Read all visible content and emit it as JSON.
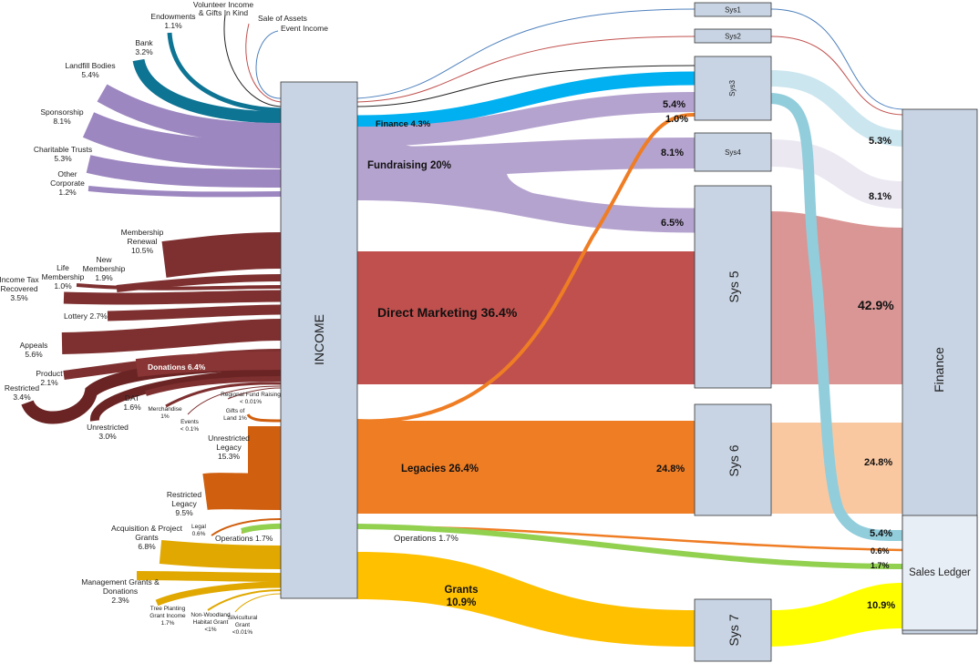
{
  "nodes": {
    "income": "INCOME",
    "sys1": "Sys1",
    "sys2": "Sys2",
    "sys3": "Sys3",
    "sys4": "Sys4",
    "sys5": "Sys 5",
    "sys6": "Sys 6",
    "sys7": "Sys 7",
    "finance": "Finance",
    "sales_ledger": "Sales Ledger"
  },
  "sources": {
    "endowments": [
      "Endowments",
      "1.1%"
    ],
    "volunteer": [
      "Volunteer Income",
      "& Gifts In Kind"
    ],
    "sale_assets": "Sale of Assets",
    "event_income": "Event Income",
    "bank": [
      "Bank",
      "3.2%"
    ],
    "landfill": [
      "Landfill Bodies",
      "5.4%"
    ],
    "sponsorship": [
      "Sponsorship",
      "8.1%"
    ],
    "charitable": [
      "Charitable Trusts",
      "5.3%"
    ],
    "other_corp": [
      "Other",
      "Corporate",
      "1.2%"
    ],
    "membership_renewal": [
      "Membership",
      "Renewal",
      "10.5%"
    ],
    "new_membership": [
      "New",
      "Membership",
      "1.9%"
    ],
    "life_membership": [
      "Life",
      "Membership",
      "1.0%"
    ],
    "income_tax": [
      "Income Tax",
      "Recovered",
      "3.5%"
    ],
    "lottery": "Lottery 2.7%",
    "appeals": [
      "Appeals",
      "5.6%"
    ],
    "product": [
      "Product",
      "2.1%"
    ],
    "restricted": [
      "Restricted",
      "3.4%"
    ],
    "unrestricted": [
      "Unrestricted",
      "3.0%"
    ],
    "dat": [
      "DAT",
      "1.6%"
    ],
    "merchandise": [
      "Merchandise",
      "1%"
    ],
    "events": [
      "Events",
      "< 0.1%"
    ],
    "regional": [
      "Regional Fund Raising",
      "< 0.01%"
    ],
    "gifts_land": [
      "Gifts of",
      "Land 1%"
    ],
    "unrestricted_legacy": [
      "Unrestricted",
      "Legacy",
      "15.3%"
    ],
    "restricted_legacy": [
      "Restricted",
      "Legacy",
      "9.5%"
    ],
    "legal": [
      "Legal",
      "0.6%"
    ],
    "acquisition": [
      "Acquisition & Project",
      "Grants",
      "6.8%"
    ],
    "operations_src": "Operations 1.7%",
    "management": [
      "Management Grants &",
      "Donations",
      "2.3%"
    ],
    "tree_planting": [
      "Tree Planting",
      "Grant Income",
      "1.7%"
    ],
    "non_woodland": [
      "Non-Woodland",
      "Habitat Grant",
      "<1%"
    ],
    "silvicultural": [
      "Silvicultural",
      "Grant",
      "<0.01%"
    ],
    "donations": "Donations 6.4%"
  },
  "flows": {
    "finance": "Finance 4.3%",
    "fundraising": "Fundraising 20%",
    "direct_marketing": "Direct Marketing 36.4%",
    "legacies": "Legacies 26.4%",
    "operations": "Operations 1.7%",
    "grants": [
      "Grants",
      "10.9%"
    ]
  },
  "percents": {
    "p_54_sys3": "5.4%",
    "p_10": "1.0%",
    "p_81_sys4": "8.1%",
    "p_65": "6.5%",
    "p_248_sys6": "24.8%",
    "fin_53": "5.3%",
    "fin_81": "8.1%",
    "fin_429": "42.9%",
    "fin_248": "24.8%",
    "fin_54": "5.4%",
    "fin_06": "0.6%",
    "fin_17": "1.7%",
    "fin_109": "10.9%"
  },
  "colors": {
    "finance_flow": "#00b0f0",
    "bank": "#0e7494",
    "fundraising": "#b5a3cf",
    "fundraising_src": "#9d87c0",
    "direct_marketing": "#c0504d",
    "donations_src": "#7e3030",
    "legacies": "#ef7d24",
    "legacy_src": "#d06010",
    "grants": "#ffc000",
    "grants_src": "#e0a800",
    "operations": "#92d050",
    "sys3_finance": "#cce6ef",
    "sys4_finance": "#ebe8f2",
    "sys5_finance": "#d99694",
    "sys6_finance": "#fac8a0",
    "sys7_finance": "#ffff00",
    "sys3_loop": "#92cddc"
  }
}
